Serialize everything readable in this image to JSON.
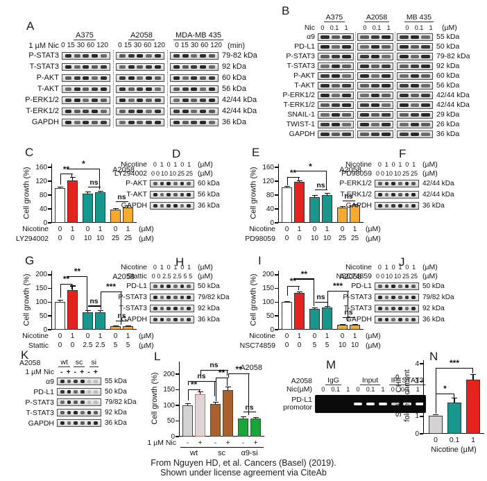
{
  "caption": {
    "line1": "From Nguyen HD, et al. Cancers (Basel) (2019).",
    "line2": "Shown under license agreement via CiteAb"
  },
  "colors": {
    "white": "#ffffff",
    "red": "#e4231d",
    "teal": "#17978d",
    "orange": "#f6aa30",
    "gray": "#d3d3d3",
    "gray2": "#dbd5d4",
    "brown": "#a8622f",
    "green": "#1ba43a"
  },
  "panels": {
    "A": {
      "letter": "A",
      "row_label": "1 µM Nic",
      "unit": "(min)",
      "groups": [
        {
          "name": "A375",
          "lanes": [
            "0",
            "15",
            "30",
            "60",
            "120"
          ]
        },
        {
          "name": "A2058",
          "lanes": [
            "0",
            "15",
            "30",
            "60",
            "120"
          ]
        },
        {
          "name": "MDA-MB 435",
          "lanes": [
            "0",
            "15",
            "30",
            "60",
            "120"
          ]
        }
      ],
      "rows": [
        {
          "label": "P-STAT3",
          "kda": "79-82 kDa"
        },
        {
          "label": "T-STAT3",
          "kda": "92 kDa"
        },
        {
          "label": "P-AKT",
          "kda": "60 kDa"
        },
        {
          "label": "T-AKT",
          "kda": "56 kDa"
        },
        {
          "label": "P-ERK1/2",
          "kda": "42/44 kDa"
        },
        {
          "label": "T-ERK1/2",
          "kda": "42/44 kDa"
        },
        {
          "label": "GAPDH",
          "kda": "36 kDa"
        }
      ]
    },
    "B": {
      "letter": "B",
      "row_label": "Nic",
      "unit": "(µM)",
      "groups": [
        {
          "name": "A375",
          "lanes": [
            "0",
            "0.1",
            "1"
          ]
        },
        {
          "name": "A2058",
          "lanes": [
            "0",
            "0.1",
            "1"
          ]
        },
        {
          "name": "MB 435",
          "lanes": [
            "0",
            "0.1",
            "1"
          ]
        }
      ],
      "rows": [
        {
          "label": "α9",
          "kda": "55 kDa"
        },
        {
          "label": "PD-L1",
          "kda": "50 kDa"
        },
        {
          "label": "P-STAT3",
          "kda": "79-82 kDa"
        },
        {
          "label": "T-STAT3",
          "kda": "92 kDa"
        },
        {
          "label": "P-AKT",
          "kda": "60 kDa"
        },
        {
          "label": "T-AKT",
          "kda": "56 kDa"
        },
        {
          "label": "P-ERK1/2",
          "kda": "42/44 kDa"
        },
        {
          "label": "T-ERK1/2",
          "kda": "42/44 kDa"
        },
        {
          "label": "SNAIL-1",
          "kda": "29 kDa"
        },
        {
          "label": "TWIST-1",
          "kda": "26 kDa"
        },
        {
          "label": "GAPDH",
          "kda": "36 kDa"
        }
      ]
    },
    "C": {
      "letter": "C",
      "chart": "C"
    },
    "D": {
      "letter": "D",
      "headers": [
        {
          "label": "Nicotine",
          "values": [
            "0",
            "1",
            "0",
            "1",
            "0",
            "1"
          ],
          "unit": "(µM)"
        },
        {
          "label": "LY294002",
          "values": [
            "0",
            "0",
            "10",
            "10",
            "25",
            "25"
          ],
          "unit": "(µM)"
        }
      ],
      "rows": [
        {
          "label": "P-AKT",
          "kda": "60 kDa"
        },
        {
          "label": "T-AKT",
          "kda": "56 kDa"
        },
        {
          "label": "GAPDH",
          "kda": "36 kDa"
        }
      ]
    },
    "E": {
      "letter": "E",
      "chart": "E"
    },
    "F": {
      "letter": "F",
      "headers": [
        {
          "label": "Nicotine",
          "values": [
            "0",
            "1",
            "0",
            "1",
            "0",
            "1"
          ],
          "unit": "(µM)"
        },
        {
          "label": "PD98059",
          "values": [
            "0",
            "0",
            "10",
            "10",
            "25",
            "25"
          ],
          "unit": "(µM)"
        }
      ],
      "rows": [
        {
          "label": "P-ERK1/2",
          "kda": "42/44 kDa"
        },
        {
          "label": "T-ERK1/2",
          "kda": "42/44 kDa"
        },
        {
          "label": "GAPDH",
          "kda": "36 kDa"
        }
      ]
    },
    "G": {
      "letter": "G",
      "chart": "G"
    },
    "H": {
      "letter": "H",
      "headers": [
        {
          "label": "Nicotine",
          "values": [
            "0",
            "1",
            "0",
            "1",
            "0",
            "1"
          ],
          "unit": "(µM)"
        },
        {
          "label": "Stattic",
          "values": [
            "0",
            "0",
            "2.5",
            "2.5",
            "5",
            "5"
          ],
          "unit": "(µM)"
        }
      ],
      "rows": [
        {
          "label": "PD-L1",
          "kda": "50 kDa"
        },
        {
          "label": "P-STAT3",
          "kda": "79/82 kDa"
        },
        {
          "label": "T-STAT3",
          "kda": "92 kDa"
        },
        {
          "label": "GAPDH",
          "kda": "36 kDa"
        }
      ]
    },
    "I": {
      "letter": "I",
      "chart": "I"
    },
    "J": {
      "letter": "J",
      "headers": [
        {
          "label": "Nicotine",
          "values": [
            "0",
            "1",
            "0",
            "1",
            "0",
            "1"
          ],
          "unit": "(µM)"
        },
        {
          "label": "NSC74859",
          "values": [
            "0",
            "0",
            "10",
            "10",
            "25",
            "25"
          ],
          "unit": "(µM)"
        }
      ],
      "rows": [
        {
          "label": "PD-L1",
          "kda": "50 kDa"
        },
        {
          "label": "P-STAT3",
          "kda": "79/82 kDa"
        },
        {
          "label": "T-STAT3",
          "kda": "92 kDa"
        },
        {
          "label": "GAPDH",
          "kda": "36 kDa"
        }
      ]
    },
    "K": {
      "letter": "K",
      "cell": "A2058",
      "row_label": "1 µM Nic",
      "groups": [
        "wt",
        "sc",
        "si"
      ],
      "signs": [
        "-",
        "+",
        "-",
        "+",
        "-",
        "+"
      ],
      "rows": [
        {
          "label": "α9",
          "kda": "55 kDa"
        },
        {
          "label": "PD-L1",
          "kda": "50 kDa"
        },
        {
          "label": "P-STAT3",
          "kda": "79/82 kDa"
        },
        {
          "label": "T-STAT3",
          "kda": "92 kDa"
        },
        {
          "label": "GAPDH",
          "kda": "36 kDa"
        }
      ]
    },
    "L": {
      "letter": "L",
      "chart": "L"
    },
    "M": {
      "letter": "M",
      "cell": "A2058",
      "nic_label": "Nic(µM)",
      "groups": [
        "IgG",
        "Input",
        "IP: STAT3"
      ],
      "lanes": [
        "0",
        "0.1",
        "1"
      ],
      "target_line1": "PD-L1",
      "target_line2": "promotor"
    },
    "N": {
      "letter": "N",
      "chart": "N"
    }
  },
  "chart_data": [
    {
      "id": "C",
      "type": "bar",
      "title": "A2058",
      "ylabel": "Cell growth (%)",
      "ylim": [
        0,
        170
      ],
      "yticks": [
        0,
        40,
        80,
        120,
        160
      ],
      "values": [
        100,
        123,
        85,
        88,
        38,
        45
      ],
      "errors": [
        5,
        10,
        5,
        5,
        4,
        6
      ],
      "colors": [
        "white",
        "red",
        "teal",
        "teal",
        "orange",
        "orange"
      ],
      "xrows": [
        {
          "label": "Nicotine",
          "values": [
            "0",
            "1",
            "0",
            "1",
            "0",
            "1"
          ],
          "unit": "(µM)"
        },
        {
          "label": "LY294002",
          "values": [
            "0",
            "0",
            "10",
            "10",
            "25",
            "25"
          ],
          "unit": "(µM)"
        }
      ],
      "annotations": [
        {
          "x1": 0,
          "x2": 1,
          "y": 142,
          "label": "**",
          "d1": 16,
          "d2": 5
        },
        {
          "x1": 0.55,
          "x2": 3,
          "y": 157,
          "label": "*",
          "d1": 0,
          "d2": 30
        },
        {
          "x1": 2,
          "x2": 3,
          "y": 104,
          "label": "ns"
        },
        {
          "x1": 4,
          "x2": 5,
          "y": 62,
          "label": "ns"
        }
      ]
    },
    {
      "id": "E",
      "type": "bar",
      "title": "A2058",
      "ylabel": "Cell growth (%)",
      "ylim": [
        0,
        170
      ],
      "yticks": [
        0,
        40,
        80,
        120,
        160
      ],
      "values": [
        102,
        118,
        75,
        80,
        45,
        50
      ],
      "errors": [
        4,
        5,
        5,
        6,
        4,
        4
      ],
      "colors": [
        "white",
        "red",
        "teal",
        "teal",
        "orange",
        "orange"
      ],
      "xrows": [
        {
          "label": "Nicotine",
          "values": [
            "0",
            "1",
            "0",
            "1",
            "0",
            "1"
          ],
          "unit": "(µM)"
        },
        {
          "label": "PD98059",
          "values": [
            "0",
            "0",
            "10",
            "10",
            "25",
            "25"
          ],
          "unit": "(µM)"
        }
      ],
      "annotations": [
        {
          "x1": 0,
          "x2": 1,
          "y": 132,
          "label": "**",
          "d1": 12,
          "d2": 6
        },
        {
          "x1": 0.55,
          "x2": 3,
          "y": 150,
          "label": "*",
          "d1": 0,
          "d2": 28
        },
        {
          "x1": 2,
          "x2": 3,
          "y": 96,
          "label": "ns"
        },
        {
          "x1": 4,
          "x2": 5,
          "y": 64,
          "label": "ns"
        }
      ]
    },
    {
      "id": "G",
      "type": "bar",
      "title": "A2058",
      "ylabel": "Cell growth (%)",
      "ylim": [
        0,
        215
      ],
      "yticks": [
        0,
        50,
        100,
        150,
        200
      ],
      "values": [
        100,
        143,
        63,
        63,
        12,
        13
      ],
      "errors": [
        8,
        18,
        8,
        8,
        3,
        3
      ],
      "colors": [
        "white",
        "red",
        "teal",
        "teal",
        "orange",
        "orange"
      ],
      "xrows": [
        {
          "label": "Nicotine",
          "values": [
            "0",
            "1",
            "0",
            "1",
            "0",
            "1"
          ],
          "unit": "(µM)"
        },
        {
          "label": "Stattic",
          "values": [
            "0",
            "0",
            "2.5",
            "2.5",
            "5",
            "5"
          ],
          "unit": "(µM)"
        }
      ],
      "annotations": [
        {
          "x1": 0,
          "x2": 1,
          "y": 168,
          "label": "**",
          "d1": 20,
          "d2": 8
        },
        {
          "x1": 0.55,
          "x2": 2,
          "y": 196,
          "label": "**",
          "d1": 0,
          "d2": 49
        },
        {
          "x1": 2,
          "x2": 3,
          "y": 88,
          "label": "ns"
        },
        {
          "x1": 3,
          "x2": 4.5,
          "y": 140,
          "label": "***",
          "d1": 26,
          "d2": 48
        },
        {
          "x1": 4,
          "x2": 5,
          "y": 33,
          "label": "ns"
        }
      ]
    },
    {
      "id": "I",
      "type": "bar",
      "title": "A2058",
      "ylabel": "Cell growth (%)",
      "ylim": [
        0,
        215
      ],
      "yticks": [
        0,
        50,
        100,
        150,
        200
      ],
      "values": [
        100,
        133,
        77,
        82,
        18,
        17
      ],
      "errors": [
        4,
        6,
        4,
        4,
        3,
        3
      ],
      "colors": [
        "white",
        "red",
        "teal",
        "teal",
        "orange",
        "orange"
      ],
      "xrows": [
        {
          "label": "Nicotine",
          "values": [
            "0",
            "1",
            "0",
            "1",
            "0",
            "1"
          ],
          "unit": "(µM)"
        },
        {
          "label": "NSC74859",
          "values": [
            "0",
            "0",
            "5",
            "5",
            "10",
            "10"
          ],
          "unit": "(µM)"
        }
      ],
      "annotations": [
        {
          "x1": 0,
          "x2": 1,
          "y": 160,
          "label": "**",
          "d1": 14,
          "d2": 6
        },
        {
          "x1": 0.55,
          "x2": 2,
          "y": 186,
          "label": "**",
          "d1": 0,
          "d2": 40
        },
        {
          "x1": 2,
          "x2": 3,
          "y": 102,
          "label": "ns"
        },
        {
          "x1": 3,
          "x2": 4.5,
          "y": 142,
          "label": "***",
          "d1": 22,
          "d2": 44
        },
        {
          "x1": 4,
          "x2": 5,
          "y": 46,
          "label": "ns"
        }
      ]
    },
    {
      "id": "L",
      "type": "bar",
      "title": "A2058",
      "ylabel": "Cell growth (%)",
      "ylim": [
        0,
        240
      ],
      "yticks": [
        0,
        50,
        100,
        150,
        200
      ],
      "values": [
        100,
        135,
        105,
        150,
        57,
        58
      ],
      "errors": [
        7,
        10,
        6,
        10,
        8,
        4
      ],
      "colors": [
        "gray",
        "gray2",
        "brown",
        "brown",
        "green",
        "green"
      ],
      "edges": [
        "#444",
        "#c9706e",
        "#444",
        "#444",
        "#444",
        "#444"
      ],
      "xrows": [
        {
          "label": "1 µM Nic",
          "values": [
            "-",
            "+",
            "-",
            "+",
            "-",
            "+"
          ]
        }
      ],
      "groups": [
        {
          "name": "wt"
        },
        {
          "name": "sc"
        },
        {
          "name": "α9-si"
        }
      ],
      "annotations": [
        {
          "x1": 0,
          "x2": 1,
          "y": 152,
          "label": "**",
          "d1": 16,
          "d2": 4
        },
        {
          "x1": 0,
          "x2": 2,
          "y": 178,
          "label": "ns",
          "d1": 6,
          "d2": 22
        },
        {
          "x1": 2,
          "x2": 3,
          "y": 190,
          "label": "**",
          "d1": 34,
          "d2": 12
        },
        {
          "x1": 1,
          "x2": 3,
          "y": 214,
          "label": "ns",
          "d1": 8,
          "d2": 8
        },
        {
          "x1": 3,
          "x2": 4.5,
          "y": 202,
          "label": "**",
          "d1": 6,
          "d2": 60
        },
        {
          "x1": 4,
          "x2": 5,
          "y": 80,
          "label": "ns"
        }
      ]
    },
    {
      "id": "N",
      "type": "bar",
      "ylabel": "STAT3 CHIP\nfold enrichment",
      "ylim": [
        0,
        4.2
      ],
      "yticks": [
        0,
        1,
        2,
        3,
        4
      ],
      "values": [
        1.05,
        1.8,
        3.1
      ],
      "errors": [
        0.07,
        0.25,
        0.3
      ],
      "colors": [
        "gray",
        "teal",
        "red"
      ],
      "xticks": [
        "0",
        "0.1",
        "1"
      ],
      "xlabel": "Nicotine (µM)",
      "annotations": [
        {
          "x1": 0,
          "x2": 1,
          "y": 2.3,
          "label": "*",
          "d1": 29,
          "d2": 6
        },
        {
          "x1": 0,
          "x2": 2,
          "y": 3.78,
          "label": "***",
          "d1": 37,
          "d2": 8
        }
      ]
    }
  ]
}
